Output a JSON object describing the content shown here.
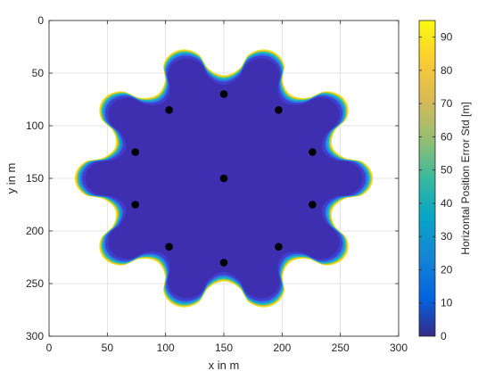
{
  "chart_data": {
    "type": "heatmap",
    "xlabel": "x in m",
    "ylabel": "y in m",
    "xlim": [
      0,
      300
    ],
    "ylim": [
      0,
      300
    ],
    "y_direction": "reversed",
    "xticks": [
      "0",
      "50",
      "100",
      "150",
      "200",
      "250",
      "300"
    ],
    "yticks": [
      "0",
      "50",
      "100",
      "150",
      "200",
      "250",
      "300"
    ],
    "grid": true,
    "colormap": "parula",
    "background_color": "#ffffff",
    "coverage_region": {
      "shape": "ten-lobed star",
      "center": [
        150,
        150
      ],
      "outer_radius": 128,
      "inner_radius": 98,
      "lobes": 10,
      "interior_value": 2,
      "edge_value": 95
    },
    "anchors": [
      {
        "x": 150,
        "y": 70
      },
      {
        "x": 103,
        "y": 85
      },
      {
        "x": 197,
        "y": 85
      },
      {
        "x": 74,
        "y": 125
      },
      {
        "x": 226,
        "y": 125
      },
      {
        "x": 150,
        "y": 150
      },
      {
        "x": 74,
        "y": 175
      },
      {
        "x": 226,
        "y": 175
      },
      {
        "x": 103,
        "y": 215
      },
      {
        "x": 197,
        "y": 215
      },
      {
        "x": 150,
        "y": 230
      }
    ],
    "colorbar": {
      "label": "Horizontal Position Error Std [m]",
      "ticks": [
        "0",
        "10",
        "20",
        "30",
        "40",
        "50",
        "60",
        "70",
        "80",
        "90"
      ],
      "tick_values": [
        0,
        10,
        20,
        30,
        40,
        50,
        60,
        70,
        80,
        90
      ],
      "range": [
        0,
        95
      ]
    }
  },
  "colors": {
    "interior": "#3e2fb0",
    "ring_1": "#3f3fd0",
    "ring_2": "#2d7ee8",
    "ring_3": "#19bfb7",
    "ring_4": "#c2c03a",
    "rim": "#f3e22a",
    "anchor": "#000000",
    "grid": "#dcdcdc",
    "axis": "#262626"
  }
}
